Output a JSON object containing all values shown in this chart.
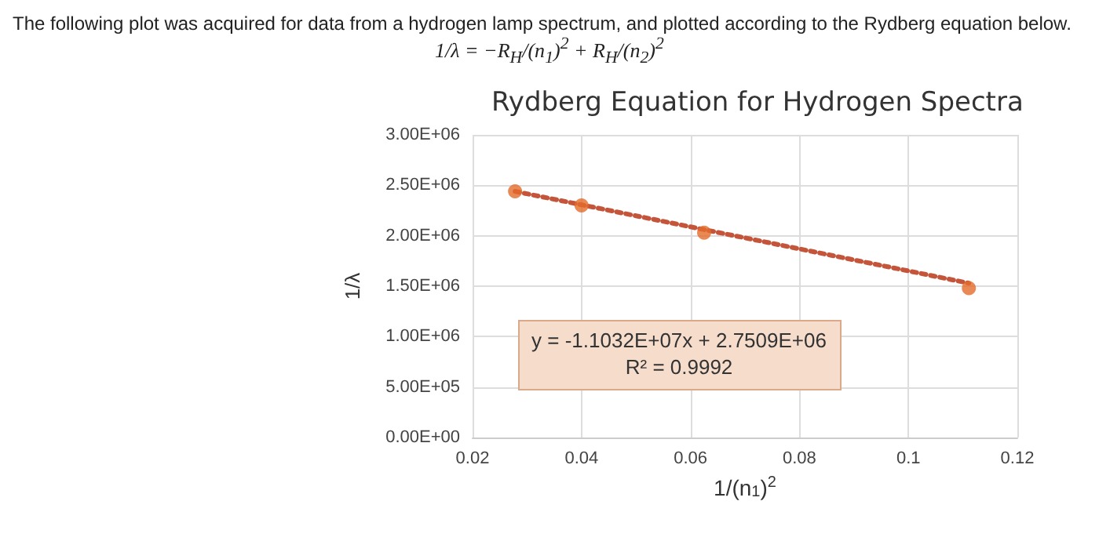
{
  "chart_data": {
    "type": "scatter",
    "title": "Rydberg Equation for Hydrogen Spectra",
    "xlabel": "1/(n$_{1}$)$^{2}$",
    "ylabel": "1/λ",
    "annotations": [
      "The following plot was acquired for data from a hydrogen lamp spectrum, and plotted according to the Rydberg equation below.",
      "1/λ = −R$_{H}$/(n$_{1}$)$^{2}$ + R$_{H}$/(n$_{2}$)$^{2}$",
      "y = -1.1032E+07x + 2.7509E+06",
      "R² = 0.9992"
    ],
    "series": [
      {
        "color": "#e46c2a",
        "marker": "circle",
        "x": [
          0.0278,
          0.04,
          0.0625,
          0.1111
        ],
        "values": [
          2440000,
          2300000,
          2030000,
          1480000
        ]
      },
      {
        "type": "line",
        "color": "#c4553a",
        "marker": "none",
        "line_style": "dotted",
        "x": [
          0.0278,
          0.1111
        ],
        "values": [
          2440000,
          1530000
        ]
      }
    ],
    "xlim": [
      0.02,
      0.12
    ],
    "xticks": [
      0.02,
      0.04,
      0.06,
      0.08,
      0.1,
      0.12
    ],
    "ylim": [
      0,
      3000000
    ],
    "yticks": [
      {
        "value": 0,
        "label": "0.00E+00"
      },
      {
        "value": 500000,
        "label": "5.00E+05"
      },
      {
        "value": 1000000,
        "label": "1.00E+06"
      },
      {
        "value": 1500000,
        "label": "1.50E+06"
      },
      {
        "value": 2000000,
        "label": "2.00E+06"
      },
      {
        "value": 2500000,
        "label": "2.50E+06"
      },
      {
        "value": 3000000,
        "label": "3.00E+06"
      }
    ],
    "grid": true
  }
}
